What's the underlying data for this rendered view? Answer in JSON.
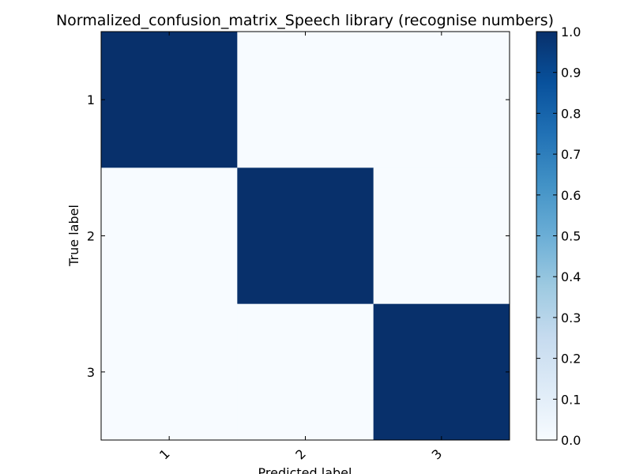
{
  "chart_data": {
    "type": "heatmap",
    "title": "Normalized_confusion_matrix_Speech library (recognise numbers)",
    "xlabel": "Predicted label",
    "ylabel": "True label",
    "x_categories": [
      "1",
      "2",
      "3"
    ],
    "y_categories": [
      "1",
      "2",
      "3"
    ],
    "values": [
      [
        1.0,
        0.0,
        0.0
      ],
      [
        0.0,
        1.0,
        0.0
      ],
      [
        0.0,
        0.0,
        1.0
      ]
    ],
    "colormap": "Blues",
    "colorbar": {
      "range": [
        0.0,
        1.0
      ],
      "ticks": [
        "0.0",
        "0.1",
        "0.2",
        "0.3",
        "0.4",
        "0.5",
        "0.6",
        "0.7",
        "0.8",
        "0.9",
        "1.0"
      ]
    },
    "x_tick_rotation_deg": 45,
    "grid": false
  }
}
